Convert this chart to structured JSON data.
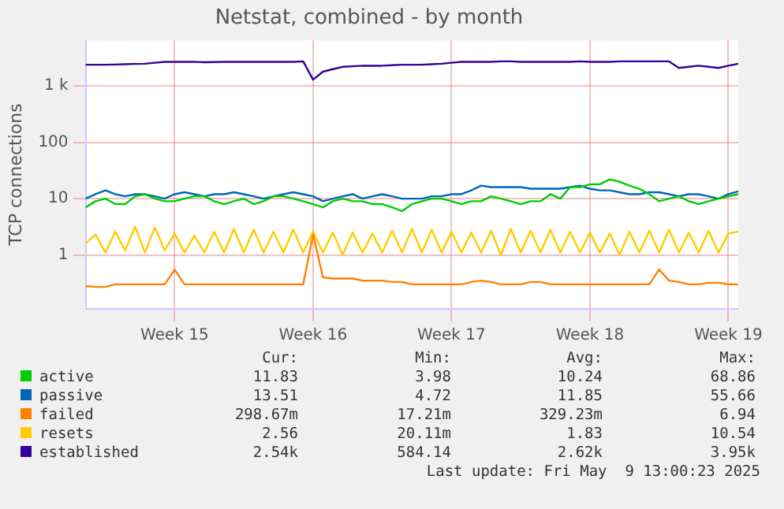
{
  "chart_data": {
    "type": "line",
    "title": "Netstat, combined - by month",
    "ylabel": "TCP connections",
    "log": "y",
    "grid": true,
    "legend": "bottom",
    "marker": "none",
    "line_style": "solid",
    "ylim": [
      0.11,
      6500
    ],
    "yticks": [
      1,
      10,
      100,
      {
        "value": 1000,
        "label": "1 k"
      }
    ],
    "categories": [
      null,
      null,
      null,
      null,
      null,
      null,
      null,
      null,
      null,
      "Week 15",
      null,
      null,
      null,
      null,
      null,
      null,
      null,
      null,
      null,
      null,
      null,
      null,
      null,
      "Week 16",
      null,
      null,
      null,
      null,
      null,
      null,
      null,
      null,
      null,
      null,
      null,
      null,
      null,
      "Week 17",
      null,
      null,
      null,
      null,
      null,
      null,
      null,
      null,
      null,
      null,
      null,
      null,
      null,
      "Week 18",
      null,
      null,
      null,
      null,
      null,
      null,
      null,
      null,
      null,
      null,
      null,
      null,
      null,
      "Week 19",
      null
    ],
    "series": [
      {
        "name": "active",
        "color": "#00cc00",
        "values": [
          7,
          9,
          10,
          8,
          8,
          11,
          12,
          10,
          9,
          9,
          10,
          11,
          11,
          9,
          8,
          9,
          10,
          8,
          9,
          11,
          11,
          10,
          9,
          8,
          7,
          9,
          10,
          9,
          9,
          8,
          8,
          7,
          6,
          8,
          9,
          10,
          10,
          9,
          8,
          9,
          9,
          11,
          10,
          9,
          8,
          9,
          9,
          12,
          10,
          16,
          16,
          18,
          18,
          22,
          20,
          17,
          15,
          12,
          9,
          10,
          11,
          9,
          8,
          9,
          10,
          11,
          12
        ]
      },
      {
        "name": "passive",
        "color": "#0066b3",
        "values": [
          10,
          12,
          14,
          12,
          11,
          12,
          12,
          11,
          10,
          12,
          13,
          12,
          11,
          12,
          12,
          13,
          12,
          11,
          10,
          11,
          12,
          13,
          12,
          11,
          9,
          10,
          11,
          12,
          10,
          11,
          12,
          11,
          10,
          10,
          10,
          11,
          11,
          12,
          12,
          14,
          17,
          16,
          16,
          16,
          16,
          15,
          15,
          15,
          15,
          16,
          17,
          15,
          14,
          14,
          13,
          12,
          12,
          13,
          13,
          12,
          11,
          12,
          12,
          11,
          10,
          12,
          13.5
        ]
      },
      {
        "name": "failed",
        "color": "#ff8000",
        "values": [
          0.28,
          0.27,
          0.27,
          0.3,
          0.3,
          0.3,
          0.3,
          0.3,
          0.3,
          0.55,
          0.3,
          0.3,
          0.3,
          0.3,
          0.3,
          0.3,
          0.3,
          0.3,
          0.3,
          0.3,
          0.3,
          0.3,
          0.3,
          2.3,
          0.4,
          0.38,
          0.38,
          0.38,
          0.35,
          0.35,
          0.35,
          0.33,
          0.33,
          0.3,
          0.3,
          0.3,
          0.3,
          0.3,
          0.3,
          0.33,
          0.35,
          0.33,
          0.3,
          0.3,
          0.3,
          0.33,
          0.33,
          0.3,
          0.3,
          0.3,
          0.3,
          0.3,
          0.3,
          0.3,
          0.3,
          0.3,
          0.3,
          0.3,
          0.55,
          0.35,
          0.33,
          0.3,
          0.3,
          0.32,
          0.32,
          0.3,
          0.3
        ]
      },
      {
        "name": "resets",
        "color": "#ffcc00",
        "values": [
          1.6,
          2.3,
          1.1,
          2.6,
          1.2,
          3.2,
          1.1,
          3.1,
          1.2,
          2.4,
          1.1,
          2.2,
          1.1,
          2.6,
          1.1,
          2.9,
          1.1,
          2.8,
          1.1,
          2.6,
          1.1,
          2.8,
          1.1,
          2.6,
          1.1,
          2.5,
          1.0,
          2.5,
          1.1,
          2.4,
          1.1,
          2.7,
          1.1,
          2.9,
          1.1,
          2.8,
          1.1,
          2.6,
          1.1,
          2.5,
          1.1,
          2.7,
          1.0,
          2.9,
          1.1,
          2.7,
          1.1,
          2.8,
          1.1,
          2.6,
          1.1,
          2.5,
          1.1,
          2.4,
          1.0,
          2.6,
          1.1,
          2.7,
          1.1,
          2.8,
          1.1,
          2.5,
          1.1,
          2.7,
          1.1,
          2.4,
          2.6
        ]
      },
      {
        "name": "established",
        "color": "#330099",
        "values": [
          2400,
          2400,
          2400,
          2420,
          2450,
          2480,
          2500,
          2600,
          2700,
          2700,
          2700,
          2700,
          2650,
          2680,
          2700,
          2700,
          2700,
          2700,
          2700,
          2700,
          2700,
          2700,
          2750,
          1300,
          1800,
          2000,
          2200,
          2250,
          2300,
          2300,
          2300,
          2350,
          2400,
          2400,
          2400,
          2450,
          2500,
          2600,
          2700,
          2700,
          2700,
          2700,
          2750,
          2750,
          2700,
          2700,
          2700,
          2700,
          2700,
          2700,
          2750,
          2700,
          2700,
          2700,
          2750,
          2750,
          2750,
          2750,
          2750,
          2750,
          2100,
          2200,
          2300,
          2200,
          2100,
          2300,
          2500
        ]
      }
    ],
    "annotations": [
      "Cur:",
      "Min:",
      "Avg:",
      "Max:",
      "11.83",
      "3.98",
      "10.24",
      "68.86",
      "13.51",
      "4.72",
      "11.85",
      "55.66",
      "298.67m",
      "17.21m",
      "329.23m",
      "6.94",
      "2.56",
      "20.11m",
      "1.83",
      "10.54",
      "2.54k",
      "584.14",
      "2.62k",
      "3.95k",
      "Last update: Fri May  9 13:00:23 2025"
    ]
  }
}
